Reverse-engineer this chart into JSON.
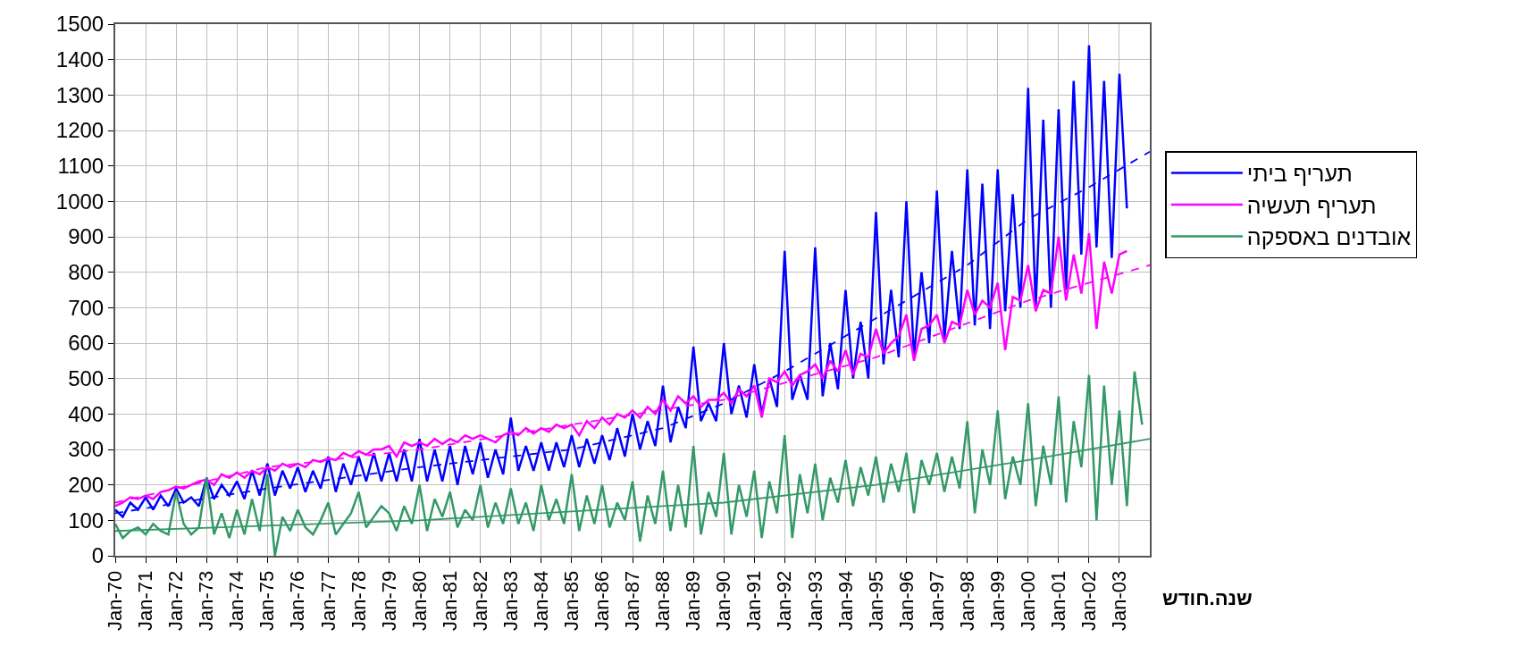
{
  "chart_data": {
    "type": "line",
    "xlabel": "שנה.חודש",
    "xlim": [
      "1970-01",
      "2004-01"
    ],
    "xticks": [
      {
        "value": "1970-01",
        "label": "Jan-70"
      },
      {
        "value": "1971-01",
        "label": "Jan-71"
      },
      {
        "value": "1972-01",
        "label": "Jan-72"
      },
      {
        "value": "1973-01",
        "label": "Jan-73"
      },
      {
        "value": "1974-01",
        "label": "Jan-74"
      },
      {
        "value": "1975-01",
        "label": "Jan-75"
      },
      {
        "value": "1976-01",
        "label": "Jan-76"
      },
      {
        "value": "1977-01",
        "label": "Jan-77"
      },
      {
        "value": "1978-01",
        "label": "Jan-78"
      },
      {
        "value": "1979-01",
        "label": "Jan-79"
      },
      {
        "value": "1980-01",
        "label": "Jan-80"
      },
      {
        "value": "1981-01",
        "label": "Jan-81"
      },
      {
        "value": "1982-01",
        "label": "Jan-82"
      },
      {
        "value": "1983-01",
        "label": "Jan-83"
      },
      {
        "value": "1984-01",
        "label": "Jan-84"
      },
      {
        "value": "1985-01",
        "label": "Jan-85"
      },
      {
        "value": "1986-01",
        "label": "Jan-86"
      },
      {
        "value": "1987-01",
        "label": "Jan-87"
      },
      {
        "value": "1988-01",
        "label": "Jan-88"
      },
      {
        "value": "1989-01",
        "label": "Jan-89"
      },
      {
        "value": "1990-01",
        "label": "Jan-90"
      },
      {
        "value": "1991-01",
        "label": "Jan-91"
      },
      {
        "value": "1992-01",
        "label": "Jan-92"
      },
      {
        "value": "1993-01",
        "label": "Jan-93"
      },
      {
        "value": "1994-01",
        "label": "Jan-94"
      },
      {
        "value": "1995-01",
        "label": "Jan-95"
      },
      {
        "value": "1996-01",
        "label": "Jan-96"
      },
      {
        "value": "1997-01",
        "label": "Jan-97"
      },
      {
        "value": "1998-01",
        "label": "Jan-98"
      },
      {
        "value": "1999-01",
        "label": "Jan-99"
      },
      {
        "value": "2000-01",
        "label": "Jan-00"
      },
      {
        "value": "2001-01",
        "label": "Jan-01"
      },
      {
        "value": "2002-01",
        "label": "Jan-02"
      },
      {
        "value": "2003-01",
        "label": "Jan-03"
      }
    ],
    "ylim": [
      0,
      1500
    ],
    "yticks": [
      0,
      100,
      200,
      300,
      400,
      500,
      600,
      700,
      800,
      900,
      1000,
      1100,
      1200,
      1300,
      1400,
      1500
    ],
    "grid": true,
    "legend": "right",
    "marker": "none",
    "line_style": "solid",
    "x": [
      "1970-01",
      "1970-04",
      "1970-07",
      "1970-10",
      "1971-01",
      "1971-04",
      "1971-07",
      "1971-10",
      "1972-01",
      "1972-04",
      "1972-07",
      "1972-10",
      "1973-01",
      "1973-04",
      "1973-07",
      "1973-10",
      "1974-01",
      "1974-04",
      "1974-07",
      "1974-10",
      "1975-01",
      "1975-04",
      "1975-07",
      "1975-10",
      "1976-01",
      "1976-04",
      "1976-07",
      "1976-10",
      "1977-01",
      "1977-04",
      "1977-07",
      "1977-10",
      "1978-01",
      "1978-04",
      "1978-07",
      "1978-10",
      "1979-01",
      "1979-04",
      "1979-07",
      "1979-10",
      "1980-01",
      "1980-04",
      "1980-07",
      "1980-10",
      "1981-01",
      "1981-04",
      "1981-07",
      "1981-10",
      "1982-01",
      "1982-04",
      "1982-07",
      "1982-10",
      "1983-01",
      "1983-04",
      "1983-07",
      "1983-10",
      "1984-01",
      "1984-04",
      "1984-07",
      "1984-10",
      "1985-01",
      "1985-04",
      "1985-07",
      "1985-10",
      "1986-01",
      "1986-04",
      "1986-07",
      "1986-10",
      "1987-01",
      "1987-04",
      "1987-07",
      "1987-10",
      "1988-01",
      "1988-04",
      "1988-07",
      "1988-10",
      "1989-01",
      "1989-04",
      "1989-07",
      "1989-10",
      "1990-01",
      "1990-04",
      "1990-07",
      "1990-10",
      "1991-01",
      "1991-04",
      "1991-07",
      "1991-10",
      "1992-01",
      "1992-04",
      "1992-07",
      "1992-10",
      "1993-01",
      "1993-04",
      "1993-07",
      "1993-10",
      "1994-01",
      "1994-04",
      "1994-07",
      "1994-10",
      "1995-01",
      "1995-04",
      "1995-07",
      "1995-10",
      "1996-01",
      "1996-04",
      "1996-07",
      "1996-10",
      "1997-01",
      "1997-04",
      "1997-07",
      "1997-10",
      "1998-01",
      "1998-04",
      "1998-07",
      "1998-10",
      "1999-01",
      "1999-04",
      "1999-07",
      "1999-10",
      "2000-01",
      "2000-04",
      "2000-07",
      "2000-10",
      "2001-01",
      "2001-04",
      "2001-07",
      "2001-10",
      "2002-01",
      "2002-04",
      "2002-07",
      "2002-10",
      "2003-01",
      "2003-04",
      "2003-07",
      "2003-10"
    ],
    "series": [
      {
        "name": "תעריף ביתי",
        "color": "#0000ff",
        "values": [
          130,
          110,
          150,
          130,
          165,
          130,
          170,
          140,
          190,
          150,
          165,
          140,
          220,
          160,
          200,
          170,
          210,
          160,
          240,
          170,
          260,
          170,
          240,
          190,
          250,
          180,
          240,
          190,
          280,
          180,
          260,
          200,
          280,
          210,
          290,
          210,
          290,
          210,
          300,
          210,
          330,
          210,
          300,
          210,
          310,
          200,
          310,
          230,
          320,
          220,
          300,
          230,
          390,
          240,
          310,
          240,
          320,
          240,
          320,
          250,
          340,
          250,
          330,
          260,
          340,
          270,
          360,
          280,
          400,
          300,
          380,
          310,
          480,
          320,
          420,
          360,
          590,
          380,
          430,
          380,
          600,
          400,
          480,
          390,
          540,
          400,
          500,
          420,
          860,
          440,
          510,
          440,
          870,
          450,
          600,
          470,
          750,
          500,
          660,
          500,
          970,
          540,
          750,
          560,
          1000,
          560,
          800,
          600,
          1030,
          610,
          860,
          640,
          1090,
          650,
          1050,
          640,
          1090,
          690,
          1020,
          700,
          1320,
          700,
          1230,
          700,
          1260,
          750,
          1340,
          850,
          1440,
          870,
          1340,
          840,
          1360,
          980,
          null,
          null
        ]
      },
      {
        "name": "תעריף תעשיה",
        "color": "#ff00ff",
        "values": [
          140,
          150,
          165,
          160,
          170,
          160,
          180,
          185,
          195,
          190,
          200,
          210,
          215,
          200,
          230,
          220,
          235,
          220,
          240,
          230,
          250,
          240,
          260,
          250,
          260,
          250,
          270,
          265,
          275,
          270,
          290,
          280,
          295,
          285,
          300,
          300,
          310,
          280,
          320,
          310,
          320,
          310,
          330,
          315,
          330,
          320,
          340,
          330,
          340,
          330,
          320,
          340,
          350,
          340,
          360,
          345,
          360,
          350,
          370,
          360,
          370,
          340,
          380,
          360,
          390,
          370,
          400,
          390,
          410,
          390,
          420,
          400,
          440,
          410,
          450,
          430,
          450,
          420,
          440,
          440,
          460,
          430,
          470,
          450,
          480,
          390,
          500,
          490,
          520,
          480,
          510,
          520,
          540,
          500,
          550,
          520,
          580,
          510,
          570,
          560,
          640,
          570,
          600,
          620,
          680,
          550,
          640,
          650,
          680,
          600,
          660,
          650,
          750,
          680,
          720,
          700,
          770,
          580,
          730,
          720,
          820,
          690,
          750,
          740,
          900,
          720,
          850,
          740,
          910,
          640,
          830,
          740,
          850,
          860,
          null,
          null
        ]
      },
      {
        "name": "אובדנים באספקה",
        "color": "#339966",
        "values": [
          90,
          50,
          70,
          80,
          60,
          90,
          70,
          60,
          180,
          90,
          60,
          80,
          220,
          60,
          120,
          50,
          130,
          60,
          160,
          70,
          230,
          0,
          110,
          70,
          130,
          80,
          60,
          100,
          150,
          60,
          90,
          120,
          180,
          80,
          110,
          140,
          120,
          70,
          140,
          90,
          200,
          70,
          160,
          110,
          180,
          80,
          130,
          100,
          200,
          80,
          150,
          90,
          190,
          90,
          150,
          70,
          200,
          100,
          160,
          90,
          230,
          70,
          170,
          90,
          200,
          80,
          150,
          100,
          210,
          40,
          170,
          90,
          240,
          70,
          200,
          80,
          310,
          60,
          180,
          110,
          290,
          60,
          200,
          110,
          240,
          50,
          210,
          120,
          340,
          50,
          230,
          120,
          260,
          100,
          220,
          150,
          270,
          140,
          250,
          170,
          280,
          150,
          260,
          180,
          290,
          120,
          270,
          200,
          290,
          180,
          280,
          190,
          380,
          120,
          300,
          200,
          410,
          160,
          280,
          200,
          430,
          140,
          310,
          200,
          450,
          150,
          380,
          250,
          510,
          100,
          480,
          200,
          410,
          140,
          520,
          370
        ]
      },
      {
        "color": "#0000ff",
        "line_style": "dashed",
        "x": [
          "1970-01",
          "1975-01",
          "1980-01",
          "1985-01",
          "1988-01",
          "1990-01",
          "1992-01",
          "1994-01",
          "1996-01",
          "1998-01",
          "2000-01",
          "2002-01",
          "2004-01"
        ],
        "values": [
          120,
          190,
          250,
          300,
          360,
          430,
          520,
          620,
          720,
          820,
          950,
          1040,
          1140
        ]
      },
      {
        "color": "#ff00ff",
        "line_style": "dashed",
        "x": [
          "1970-01",
          "1975-01",
          "1980-01",
          "1985-01",
          "1990-01",
          "1995-01",
          "2000-01",
          "2004-01"
        ],
        "values": [
          150,
          250,
          300,
          370,
          440,
          560,
          720,
          820
        ]
      },
      {
        "color": "#339966",
        "line_style": "solid",
        "x": [
          "1970-01",
          "1980-01",
          "1990-01",
          "1995-01",
          "2000-01",
          "2004-01"
        ],
        "values": [
          70,
          100,
          150,
          200,
          270,
          330
        ]
      }
    ]
  }
}
